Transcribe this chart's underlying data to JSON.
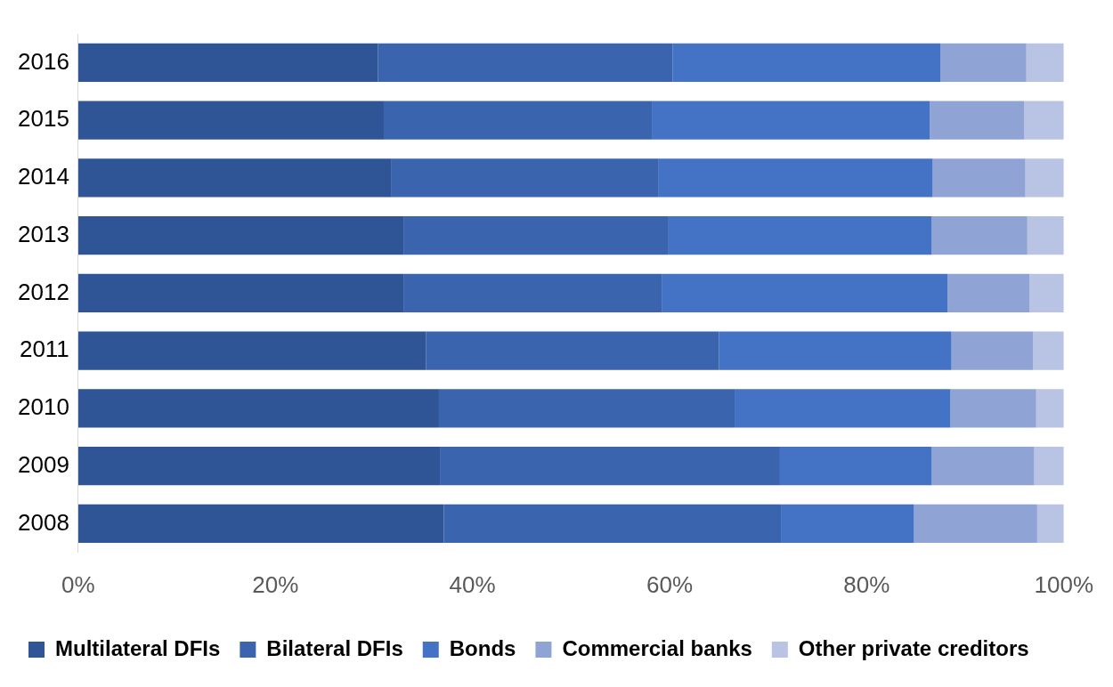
{
  "chart_data": {
    "type": "bar",
    "orientation": "horizontal",
    "stacked": true,
    "categories": [
      "2016",
      "2015",
      "2014",
      "2013",
      "2012",
      "2011",
      "2010",
      "2009",
      "2008"
    ],
    "series": [
      {
        "name": "Multilateral DFIs",
        "color": "#2f5597",
        "values": [
          30.4,
          31.0,
          31.8,
          33.0,
          33.0,
          35.3,
          36.6,
          36.7,
          37.1
        ]
      },
      {
        "name": "Bilateral DFIs",
        "color": "#3a64ad",
        "values": [
          29.9,
          27.2,
          27.1,
          26.9,
          26.2,
          29.7,
          30.0,
          34.5,
          34.2
        ]
      },
      {
        "name": "Bonds",
        "color": "#4472c4",
        "values": [
          27.2,
          28.2,
          27.8,
          26.7,
          29.0,
          23.6,
          21.9,
          15.4,
          13.5
        ]
      },
      {
        "name": "Commercial banks",
        "color": "#8fa3d4",
        "values": [
          8.7,
          9.6,
          9.4,
          9.7,
          8.3,
          8.3,
          8.7,
          10.4,
          12.5
        ]
      },
      {
        "name": "Other private creditors",
        "color": "#b9c3e3",
        "values": [
          3.8,
          4.0,
          3.9,
          3.7,
          3.5,
          3.1,
          2.8,
          3.0,
          2.7
        ]
      }
    ],
    "xlim": [
      0,
      100
    ],
    "xticks": [
      {
        "value": 0,
        "label": "0%"
      },
      {
        "value": 20,
        "label": "20%"
      },
      {
        "value": 40,
        "label": "40%"
      },
      {
        "value": 60,
        "label": "60%"
      },
      {
        "value": 80,
        "label": "80%"
      },
      {
        "value": 100,
        "label": "100%"
      }
    ],
    "grid": false,
    "legend": "bottom"
  }
}
